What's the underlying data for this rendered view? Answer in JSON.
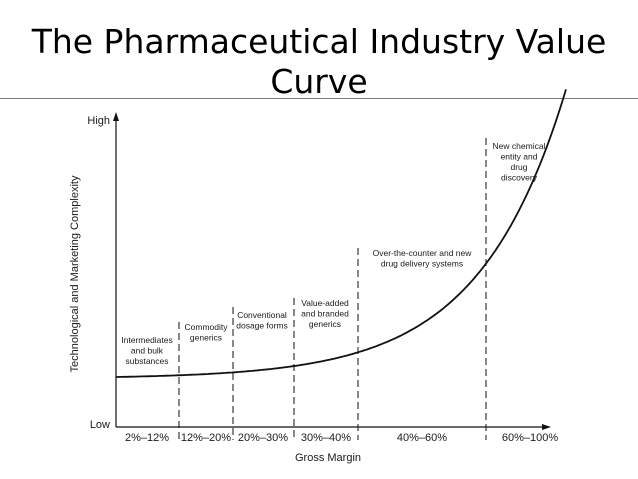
{
  "slide": {
    "title_line1": "The Pharmaceutical Industry Value",
    "title_line2": "Curve"
  },
  "chart_data": {
    "type": "line",
    "title": "The Pharmaceutical Industry Value Curve",
    "xlabel": "Gross Margin",
    "ylabel": "Technological and Marketing Complexity",
    "y_high_label": "High",
    "y_low_label": "Low",
    "margin_bands": [
      "2%–12%",
      "12%–20%",
      "20%–30%",
      "30%–40%",
      "40%–60%",
      "60%–100%"
    ],
    "segments": [
      {
        "label": [
          "Intermediates",
          "and bulk",
          "substances"
        ]
      },
      {
        "label": [
          "Commodity",
          "generics"
        ]
      },
      {
        "label": [
          "Conventional",
          "dosage forms"
        ]
      },
      {
        "label": [
          "Value-added",
          "and branded",
          "generics"
        ]
      },
      {
        "label": [
          "Over-the-counter and new",
          "drug delivery systems"
        ]
      },
      {
        "label": [
          "New chemical",
          "entity and",
          "drug",
          "discovery"
        ]
      }
    ],
    "curve": {
      "shape": "exponential",
      "color": "#111111"
    }
  }
}
